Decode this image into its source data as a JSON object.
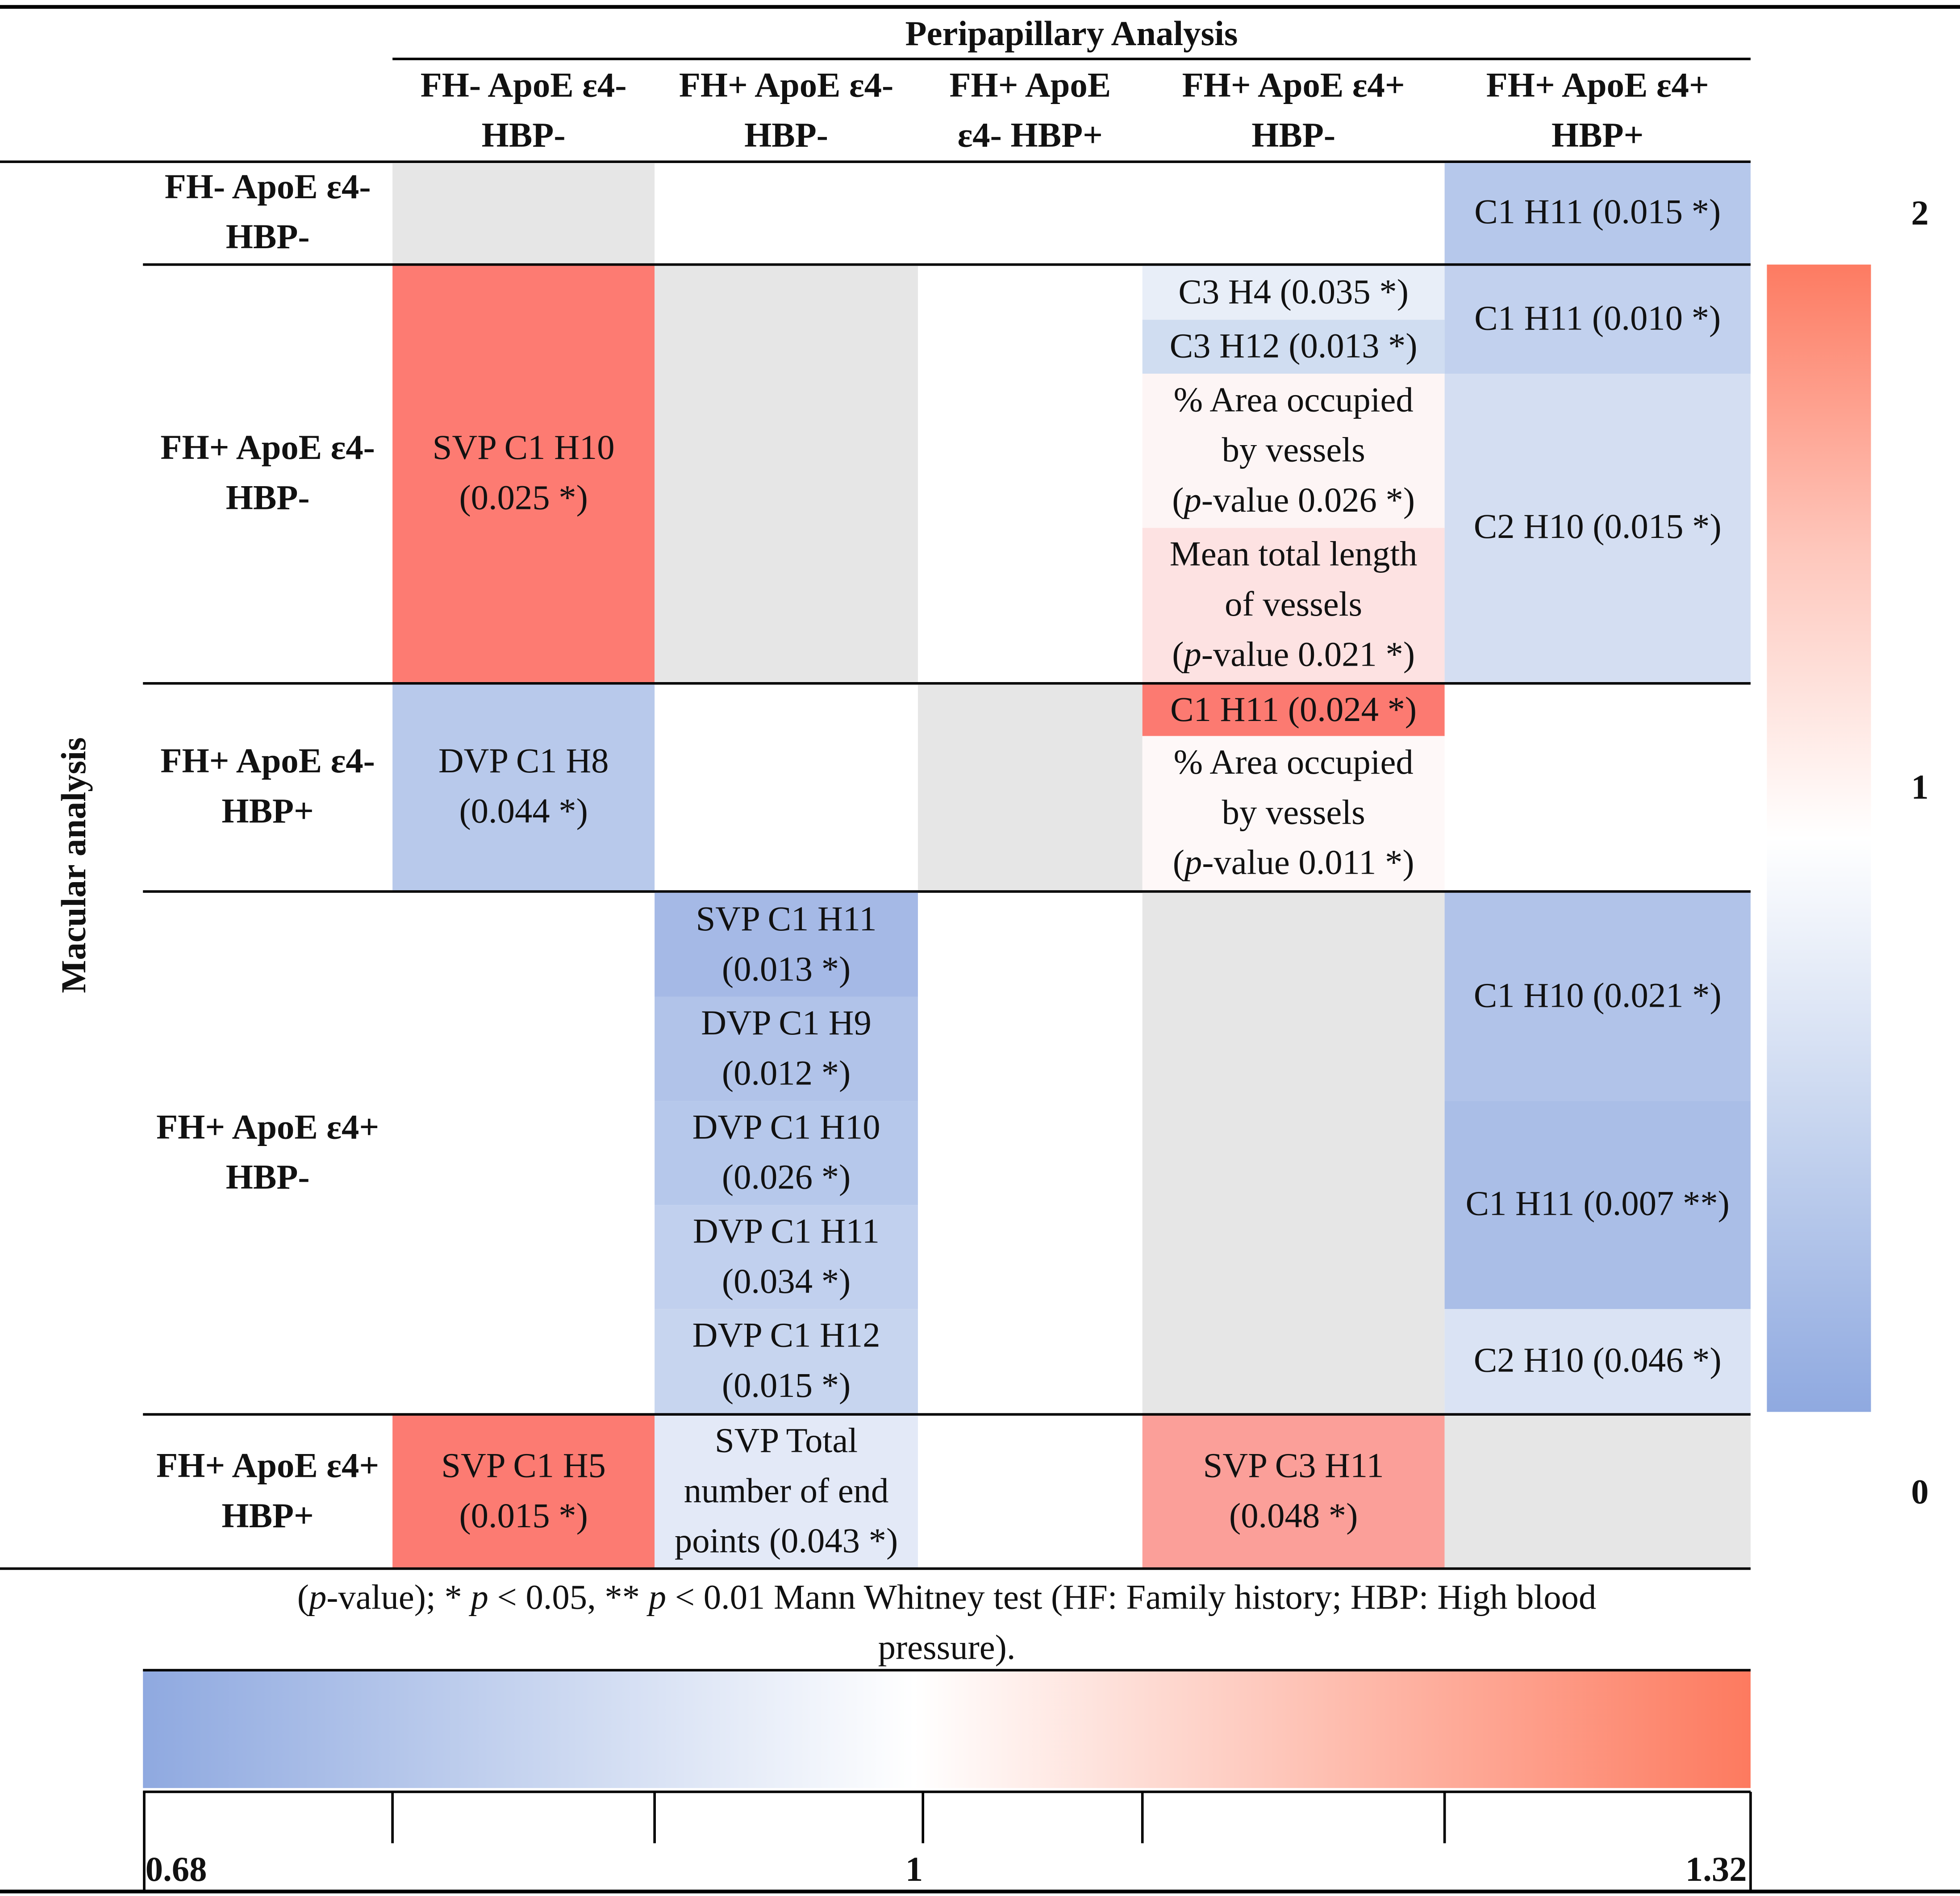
{
  "table": {
    "peripapillary_title": "Peripapillary Analysis",
    "macular_title": "Macular analysis",
    "columns": [
      {
        "line1": "FH- ApoE ε4-",
        "line2": "HBP-"
      },
      {
        "line1": "FH+ ApoE ε4-",
        "line2": "HBP-"
      },
      {
        "line1": "FH+ ApoE",
        "line2": "ε4- HBP+"
      },
      {
        "line1": "FH+ ApoE ε4+",
        "line2": "HBP-"
      },
      {
        "line1": "FH+ ApoE ε4+",
        "line2": "HBP+"
      }
    ],
    "rows": [
      {
        "line1": "FH- ApoE ε4-",
        "line2": "HBP-"
      },
      {
        "line1": "FH+ ApoE ε4-",
        "line2": "HBP-"
      },
      {
        "line1": "FH+ ApoE ε4-",
        "line2": "HBP+"
      },
      {
        "line1": "FH+ ApoE ε4+",
        "line2": "HBP-"
      },
      {
        "line1": "FH+ ApoE ε4+",
        "line2": "HBP+"
      }
    ],
    "cells": {
      "r1c5": "C1 H11 (0.015 *)",
      "r2c1a": "SVP C1 H10",
      "r2c1b": "(0.025 *)",
      "r2c4a": "C3 H4 (0.035 *)",
      "r2c4b": "C3 H12 (0.013 *)",
      "r2c4c1": "% Area occupied",
      "r2c4c2": "by vessels",
      "r2c4c3_p": "p",
      "r2c4c3": "-value 0.026 *)",
      "r2c4d1": "Mean total length",
      "r2c4d2": "of vessels",
      "r2c4d3_p": "p",
      "r2c4d3": "-value 0.021 *)",
      "r2c5a": "C1 H11 (0.010 *)",
      "r2c5b": "C2 H10 (0.015 *)",
      "r3c1a": "DVP C1 H8",
      "r3c1b": "(0.044 *)",
      "r3c4a": "C1 H11 (0.024 *)",
      "r3c4b1": "% Area occupied",
      "r3c4b2": "by vessels",
      "r3c4b3_p": "p",
      "r3c4b3": "-value 0.011 *)",
      "r4c2a1": "SVP C1 H11",
      "r4c2a2": "(0.013 *)",
      "r4c2b1": "DVP C1 H9",
      "r4c2b2": "(0.012 *)",
      "r4c2c1": "DVP C1 H10",
      "r4c2c2": "(0.026 *)",
      "r4c2d1": "DVP C1 H11",
      "r4c2d2": "(0.034 *)",
      "r4c2e1": "DVP C1 H12",
      "r4c2e2": "(0.015 *)",
      "r4c5a": "C1 H10 (0.021 *)",
      "r4c5b": "C1 H11 (0.007 **)",
      "r4c5c": "C2 H10 (0.046 *)",
      "r5c1a": "SVP C1 H5",
      "r5c1b": "(0.015 *)",
      "r5c2a": "SVP Total",
      "r5c2b": "number of end",
      "r5c2c": "points (0.043 *)",
      "r5c4a": "SVP C3 H11",
      "r5c4b": "(0.048 *)"
    }
  },
  "footnote": {
    "open": "(",
    "p1": "p",
    "part1": "-value); * ",
    "p2": "p",
    "part2": " < 0.05, ** ",
    "p3": "p",
    "part3": " < 0.01 Mann Whitney test (HF: Family history; HBP: High blood",
    "line2": "pressure)."
  },
  "legend_vertical": {
    "top": "2",
    "mid": "1",
    "bottom": "0"
  },
  "legend_horizontal": {
    "min": "0.68",
    "mid": "1",
    "max": "1.32"
  },
  "colors": {
    "red_strong": "#fd7b72",
    "red_medium": "#fb9d98",
    "red_light": "#fde2e2",
    "blue_medium": "#b3c5ea",
    "blue_dark": "#a5b9e6",
    "blue_light": "#d3dff2",
    "blue_pale": "#e6ecf7",
    "gray": "#e6e6e6"
  }
}
